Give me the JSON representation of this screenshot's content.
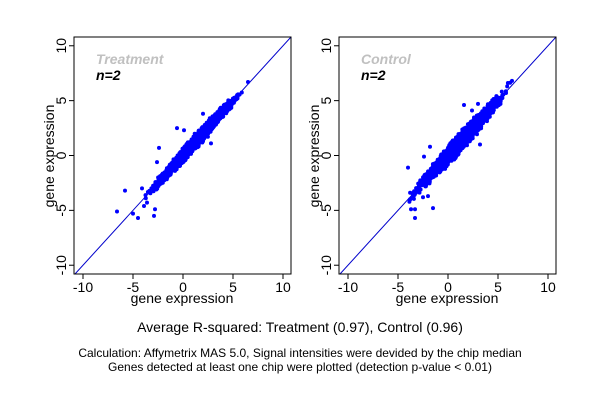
{
  "chart_data": [
    {
      "type": "scatter",
      "title": "Treatment",
      "annotation": "n=2",
      "xlabel": "gene expression",
      "ylabel": "gene expression",
      "xlim": [
        -10.9,
        10.8
      ],
      "ylim": [
        -10.8,
        10.8
      ],
      "xticks": [
        -10,
        -5,
        0,
        5,
        10
      ],
      "yticks": [
        -10,
        -5,
        0,
        5,
        10
      ],
      "reference_line": {
        "type": "identity",
        "slope": 1,
        "intercept": 0
      },
      "point_color": "#0000ff",
      "line_color": "#0000cc",
      "cloud": {
        "x_range": [
          -4.0,
          6.5
        ],
        "spread": 0.45,
        "count": 2200,
        "seed": 11
      },
      "outliers": [
        [
          -6.6,
          -5.1
        ],
        [
          -5.8,
          -3.2
        ],
        [
          -5.0,
          -5.3
        ],
        [
          -4.5,
          -5.7
        ],
        [
          -2.9,
          -5.5
        ],
        [
          -3.9,
          -4.6
        ],
        [
          -3.6,
          -4.3
        ],
        [
          -2.8,
          -4.9
        ],
        [
          -3.3,
          -3.4
        ],
        [
          -4.1,
          -3.0
        ],
        [
          -2.4,
          0.7
        ],
        [
          -2.6,
          -0.6
        ],
        [
          -0.6,
          2.5
        ],
        [
          0.1,
          2.3
        ],
        [
          2.0,
          3.8
        ],
        [
          2.8,
          1.1
        ],
        [
          6.5,
          6.7
        ]
      ],
      "grid": false
    },
    {
      "type": "scatter",
      "title": "Control",
      "annotation": "n=2",
      "xlabel": "gene expression",
      "ylabel": "gene expression",
      "xlim": [
        -10.9,
        10.8
      ],
      "ylim": [
        -10.8,
        10.8
      ],
      "xticks": [
        -10,
        -5,
        0,
        5,
        10
      ],
      "yticks": [
        -10,
        -5,
        0,
        5,
        10
      ],
      "reference_line": {
        "type": "identity",
        "slope": 1,
        "intercept": 0
      },
      "point_color": "#0000ff",
      "line_color": "#0000cc",
      "cloud": {
        "x_range": [
          -4.3,
          6.5
        ],
        "spread": 0.6,
        "count": 2400,
        "seed": 29
      },
      "outliers": [
        [
          -4.0,
          -1.1
        ],
        [
          -3.7,
          -4.9
        ],
        [
          -3.3,
          -4.9
        ],
        [
          -3.3,
          -5.7
        ],
        [
          -1.5,
          -4.8
        ],
        [
          -2.5,
          -3.8
        ],
        [
          -2.0,
          -3.7
        ],
        [
          -1.8,
          0.8
        ],
        [
          -2.4,
          -0.1
        ],
        [
          1.6,
          4.6
        ],
        [
          3.2,
          1.0
        ],
        [
          3.0,
          4.7
        ],
        [
          2.4,
          4.1
        ],
        [
          6.4,
          6.8
        ]
      ],
      "grid": false
    }
  ],
  "summary": "Average R-squared: Treatment (0.97), Control (0.96)",
  "notes": [
    "Calculation: Affymetrix MAS 5.0, Signal intensities were devided by the chip median",
    "Genes detected at least one chip were plotted (detection p-value < 0.01)"
  ]
}
